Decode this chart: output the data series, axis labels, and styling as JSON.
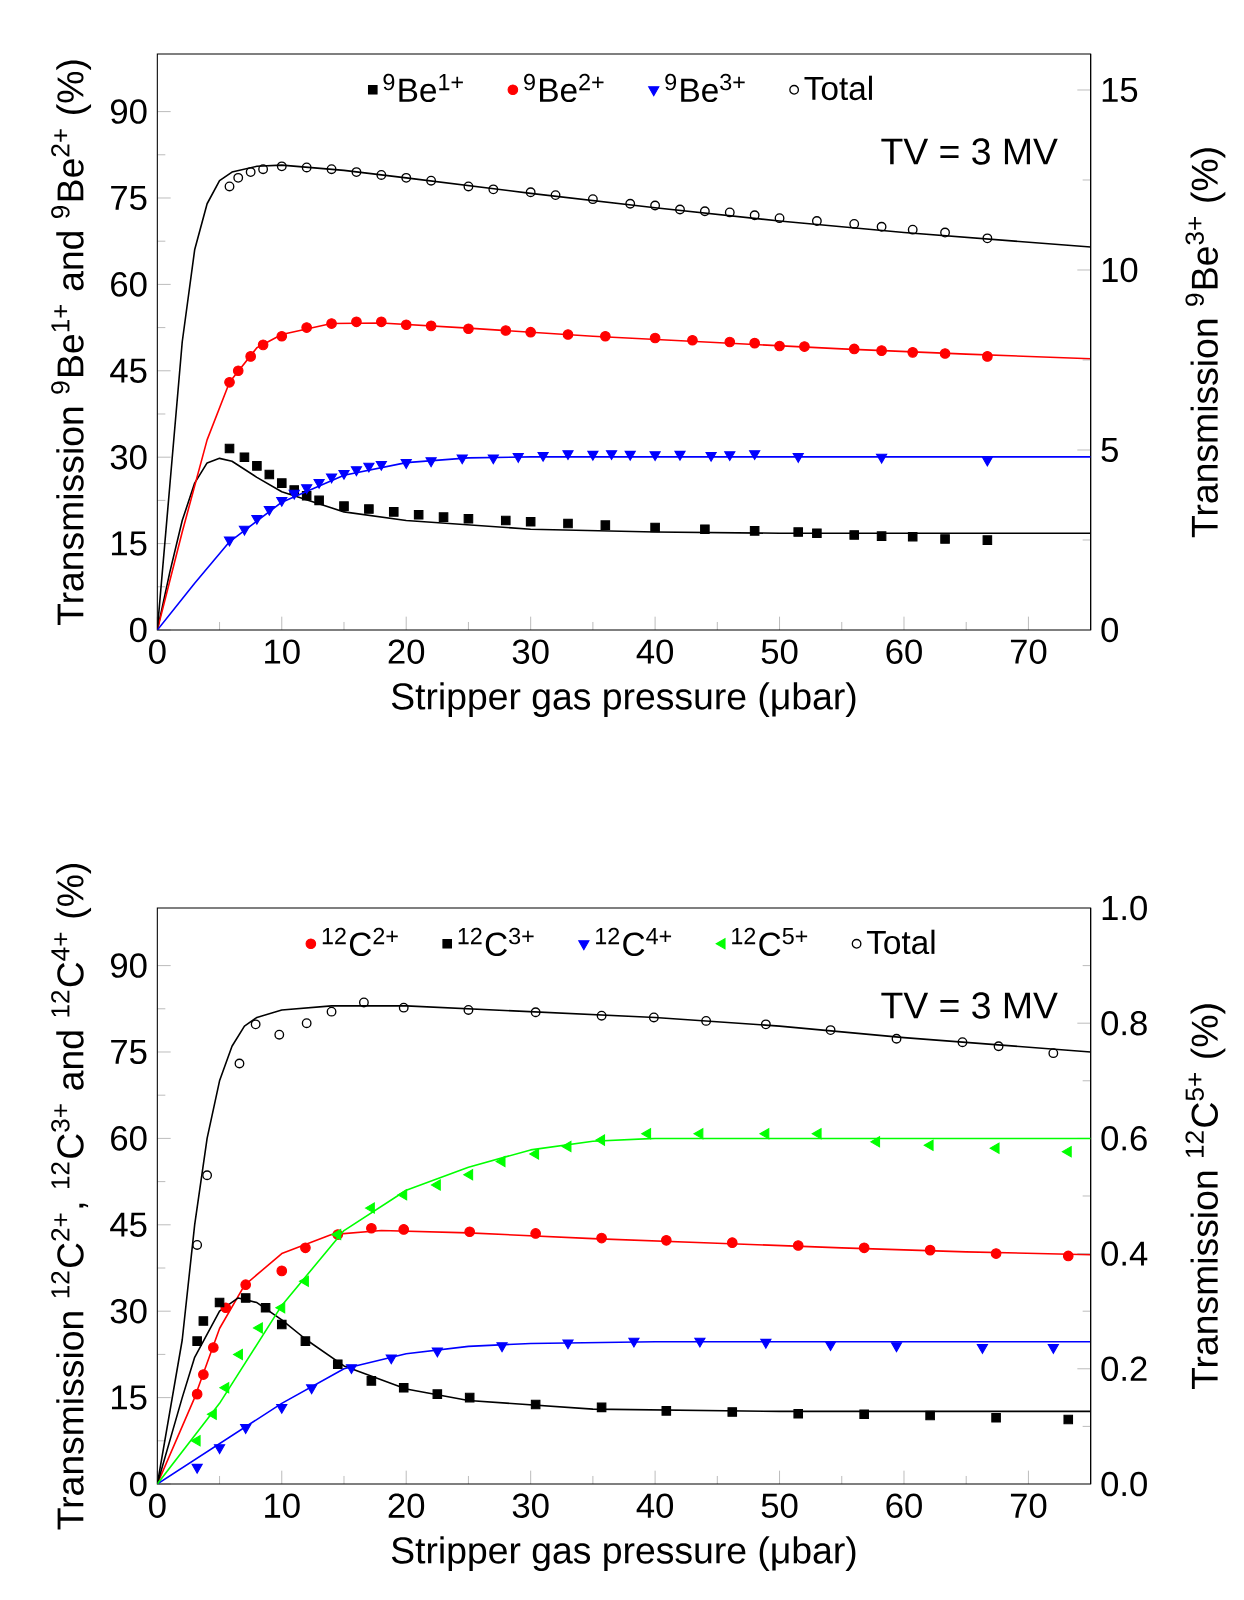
{
  "chart_data": [
    {
      "type": "scatter",
      "xlabel": "Stripper gas pressure (μbar)",
      "ylabel": "Transmission $^{9}$Be$^{1+}$ and $^{9}$Be$^{2+}$ (%)",
      "y2label": "Transmission $^{9}$Be$^{3+}$ (%)",
      "xlim": [
        0,
        75
      ],
      "ylim": [
        0,
        100
      ],
      "y2lim": [
        0,
        16
      ],
      "xticks": [
        0,
        10,
        20,
        30,
        40,
        50,
        60,
        70
      ],
      "yticks": [
        0,
        15,
        30,
        45,
        60,
        75,
        90
      ],
      "y2ticks": [
        0,
        5,
        10,
        15
      ],
      "legend": "top",
      "grid": false,
      "annotations": [
        "TV = 3 MV"
      ],
      "series": [
        {
          "name": "$^{9}$Be$^{1+}$",
          "marker": "square",
          "color": "#000000",
          "x": [
            5.8,
            7,
            8,
            9,
            10,
            11,
            12,
            13,
            15,
            17,
            19,
            21,
            23,
            25,
            28,
            30,
            33,
            36,
            40,
            44,
            48,
            51.5,
            53,
            56,
            58.2,
            60.7,
            63.3,
            66.7
          ],
          "values": [
            31.5,
            30,
            28.5,
            27,
            25.5,
            24.3,
            23.3,
            22.5,
            21.5,
            21,
            20.5,
            20,
            19.6,
            19.3,
            19,
            18.8,
            18.5,
            18.2,
            17.8,
            17.5,
            17.2,
            17,
            16.8,
            16.5,
            16.3,
            16.2,
            15.8,
            15.6
          ]
        },
        {
          "name": "$^{9}$Be$^{2+}$",
          "marker": "circle",
          "color": "#ff0000",
          "x": [
            5.8,
            6.5,
            7.5,
            8.5,
            10,
            12,
            14,
            16,
            18,
            20,
            22,
            25,
            28,
            30,
            33,
            36,
            40,
            43,
            46,
            48,
            50,
            52,
            56,
            58.2,
            60.7,
            63.3,
            66.7
          ],
          "values": [
            43,
            45,
            47.5,
            49.5,
            51,
            52.5,
            53.2,
            53.5,
            53.5,
            53,
            52.8,
            52.3,
            52,
            51.7,
            51.3,
            51,
            50.7,
            50.3,
            50,
            49.8,
            49.3,
            49.2,
            48.8,
            48.5,
            48.2,
            48,
            47.5
          ]
        },
        {
          "name": "$^{9}$Be$^{3+}$",
          "marker": "triangle-down",
          "axis": "y2",
          "color": "#0000ff",
          "x": [
            5.8,
            7,
            8,
            9,
            10,
            11,
            12,
            13,
            14,
            15,
            16,
            17,
            18,
            20,
            22,
            24.5,
            27,
            29,
            31,
            33,
            35,
            36.5,
            38,
            40,
            42,
            44.5,
            46,
            48,
            51.5,
            58.2,
            66.7
          ],
          "values": [
            2.5,
            2.8,
            3.1,
            3.35,
            3.6,
            3.8,
            3.95,
            4.1,
            4.25,
            4.35,
            4.45,
            4.55,
            4.6,
            4.65,
            4.7,
            4.78,
            4.78,
            4.82,
            4.85,
            4.9,
            4.88,
            4.9,
            4.88,
            4.87,
            4.88,
            4.85,
            4.87,
            4.9,
            4.82,
            4.8,
            4.72
          ]
        },
        {
          "name": "Total",
          "marker": "circle-open",
          "color": "#000000",
          "x": [
            5.8,
            6.5,
            7.5,
            8.5,
            10,
            12,
            14,
            16,
            18,
            20,
            22,
            25,
            27,
            30,
            32,
            35,
            38,
            40,
            42,
            44,
            46,
            48,
            50,
            53,
            56,
            58.2,
            60.7,
            63.3,
            66.7
          ],
          "values": [
            77,
            78.5,
            79.5,
            80,
            80.5,
            80.3,
            80,
            79.5,
            79,
            78.5,
            78,
            77,
            76.5,
            76,
            75.5,
            74.8,
            74,
            73.7,
            73,
            72.7,
            72.5,
            72,
            71.5,
            71,
            70.5,
            70,
            69.5,
            69,
            68
          ]
        },
        {
          "type": "line",
          "marker": "none",
          "color": "#000000",
          "x": [
            0,
            1,
            2,
            3,
            4,
            5,
            6,
            8,
            10,
            15,
            20,
            30,
            40,
            50,
            75
          ],
          "values": [
            0,
            10,
            19,
            25.5,
            29,
            29.8,
            29.3,
            26.5,
            24,
            20.5,
            19,
            17.5,
            17,
            16.8,
            16.8
          ]
        },
        {
          "type": "line",
          "marker": "none",
          "color": "#ff0000",
          "x": [
            0,
            2,
            4,
            5.8,
            8,
            10,
            14,
            18,
            25,
            35,
            45,
            55,
            65,
            75
          ],
          "values": [
            0,
            17,
            33,
            43,
            49,
            51.3,
            53.2,
            53.3,
            52.4,
            51,
            49.9,
            48.8,
            47.9,
            47.1
          ]
        },
        {
          "type": "line",
          "marker": "none",
          "axis": "y2",
          "color": "#0000ff",
          "x": [
            0,
            3,
            5.8,
            10,
            15,
            20,
            25,
            30,
            75
          ],
          "values": [
            0,
            1.3,
            2.45,
            3.55,
            4.3,
            4.65,
            4.78,
            4.81,
            4.81
          ]
        },
        {
          "type": "line",
          "marker": "none",
          "color": "#000000",
          "x": [
            0,
            1,
            2,
            3,
            4,
            5,
            6,
            8,
            10,
            15,
            20,
            30,
            40,
            50,
            60,
            75
          ],
          "values": [
            0,
            25,
            50,
            66,
            74,
            78,
            79.5,
            80.5,
            80.7,
            79.8,
            78.5,
            75.8,
            73.3,
            71,
            69,
            66.5
          ]
        }
      ]
    },
    {
      "type": "scatter",
      "xlabel": "Stripper gas pressure (μbar)",
      "ylabel": "Transmission $^{12}$C$^{2+}$, $^{12}$C$^{3+}$ and $^{12}$C$^{4+}$ (%)",
      "y2label": "Transmission $^{12}$C$^{5+}$ (%)",
      "xlim": [
        0,
        75
      ],
      "ylim": [
        0,
        100
      ],
      "y2lim": [
        0,
        1
      ],
      "xticks": [
        0,
        10,
        20,
        30,
        40,
        50,
        60,
        70
      ],
      "yticks": [
        0,
        15,
        30,
        45,
        60,
        75,
        90
      ],
      "y2ticks": [
        {
          "value": 0,
          "label": "0.0"
        },
        {
          "value": 0.2,
          "label": "0.2"
        },
        {
          "value": 0.4,
          "label": "0.4"
        },
        {
          "value": 0.6,
          "label": "0.6"
        },
        {
          "value": 0.8,
          "label": "0.8"
        },
        {
          "value": 1,
          "label": "1.0"
        }
      ],
      "legend": "top",
      "grid": false,
      "annotations": [
        "TV = 3 MV"
      ],
      "series": [
        {
          "name": "$^{12}$C$^{2+}$",
          "marker": "circle",
          "color": "#ff0000",
          "x": [
            3.2,
            3.7,
            4.5,
            5.5,
            7.1,
            10,
            11.9,
            14.5,
            17.2,
            19.8,
            25.1,
            30.4,
            35.7,
            40.9,
            46.2,
            51.5,
            56.8,
            62.1,
            67.4,
            73.2
          ],
          "values": [
            15.6,
            19,
            23.7,
            30.6,
            34.6,
            37,
            41,
            43.3,
            44.4,
            44.2,
            43.8,
            43.5,
            42.7,
            42.3,
            41.9,
            41.4,
            41,
            40.6,
            40,
            39.6
          ]
        },
        {
          "name": "$^{12}$C$^{3+}$",
          "marker": "square",
          "color": "#000000",
          "x": [
            3.2,
            3.7,
            5,
            7.1,
            8.7,
            10,
            11.9,
            14.5,
            17.2,
            19.8,
            22.5,
            25.1,
            30.4,
            35.7,
            40.9,
            46.2,
            51.5,
            56.8,
            62.1,
            67.4,
            73.2
          ],
          "values": [
            24.8,
            28.3,
            31.5,
            32.3,
            30.6,
            27.7,
            24.8,
            20.8,
            17.9,
            16.7,
            15.6,
            15,
            13.8,
            13.3,
            12.7,
            12.5,
            12.2,
            12.1,
            11.9,
            11.5,
            11.2
          ]
        },
        {
          "name": "$^{12}$C$^{4+}$",
          "marker": "triangle-down",
          "color": "#0000ff",
          "x": [
            3.2,
            5,
            7.1,
            10,
            12.4,
            15.6,
            18.8,
            22.5,
            27.7,
            33,
            38.3,
            43.6,
            48.9,
            54.1,
            59.4,
            66.3,
            72
          ],
          "values": [
            2.9,
            6.3,
            9.8,
            13.3,
            16.7,
            20.2,
            21.9,
            23.1,
            24,
            24.5,
            24.8,
            24.8,
            24.6,
            24.2,
            24,
            23.7,
            23.7
          ]
        },
        {
          "name": "$^{12}$C$^{5+}$",
          "marker": "triangle-left",
          "axis": "y2",
          "color": "#00ff00",
          "x": [
            3.2,
            4.5,
            5.5,
            6.6,
            8.2,
            10,
            11.9,
            14.5,
            17.2,
            19.8,
            22.5,
            25.1,
            27.7,
            30.4,
            33,
            35.7,
            39.4,
            43.6,
            48.9,
            53.1,
            57.8,
            62.1,
            67.4,
            73.2
          ],
          "values": [
            0.075,
            0.121,
            0.167,
            0.225,
            0.271,
            0.306,
            0.352,
            0.433,
            0.479,
            0.502,
            0.519,
            0.537,
            0.56,
            0.573,
            0.586,
            0.597,
            0.608,
            0.608,
            0.608,
            0.608,
            0.594,
            0.588,
            0.583,
            0.577
          ]
        },
        {
          "name": "Total",
          "marker": "circle-open",
          "color": "#000000",
          "x": [
            3.2,
            4,
            6.6,
            7.9,
            9.8,
            12,
            14,
            16.6,
            19.8,
            25,
            30.4,
            35.7,
            39.9,
            44.1,
            48.9,
            54.1,
            59.4,
            64.7,
            67.6,
            72
          ],
          "values": [
            41.5,
            53.6,
            73,
            79.8,
            78,
            80,
            82,
            83.6,
            82.7,
            82.3,
            81.9,
            81.3,
            81,
            80.4,
            79.8,
            78.8,
            77.3,
            76.7,
            76,
            74.8
          ]
        },
        {
          "type": "line",
          "marker": "none",
          "color": "#ff0000",
          "x": [
            0,
            3,
            5,
            7,
            10,
            14,
            18,
            25,
            35,
            45,
            55,
            65,
            75
          ],
          "values": [
            0,
            15,
            27,
            34.5,
            40,
            43.3,
            44,
            43.6,
            42.6,
            41.8,
            41,
            40.3,
            39.8
          ]
        },
        {
          "type": "line",
          "marker": "none",
          "color": "#000000",
          "x": [
            0,
            2,
            3,
            5,
            6.5,
            8,
            10,
            12,
            15,
            20,
            25,
            35,
            50,
            75
          ],
          "values": [
            0,
            15,
            22,
            30,
            32.3,
            31.5,
            28.5,
            25,
            20.5,
            16.5,
            14.5,
            13,
            12.6,
            12.6
          ]
        },
        {
          "type": "line",
          "marker": "none",
          "color": "#0000ff",
          "x": [
            0,
            5,
            10,
            15,
            20,
            25,
            30,
            40,
            75
          ],
          "values": [
            0,
            7,
            14,
            20,
            22.6,
            23.9,
            24.4,
            24.7,
            24.7
          ]
        },
        {
          "type": "line",
          "marker": "none",
          "axis": "y2",
          "color": "#00ff00",
          "x": [
            0,
            5,
            10,
            15,
            20,
            25,
            30,
            35,
            40,
            75
          ],
          "values": [
            0,
            0.14,
            0.31,
            0.44,
            0.51,
            0.55,
            0.58,
            0.595,
            0.6,
            0.6
          ]
        },
        {
          "type": "line",
          "marker": "none",
          "color": "#000000",
          "x": [
            0,
            2,
            3,
            4,
            5,
            6,
            7,
            8,
            10,
            14,
            20,
            30,
            40,
            50,
            60,
            75
          ],
          "values": [
            0,
            25,
            45,
            60,
            70,
            76,
            79.5,
            81,
            82.3,
            83,
            83,
            82,
            81,
            79.5,
            77.5,
            75
          ]
        }
      ]
    }
  ]
}
